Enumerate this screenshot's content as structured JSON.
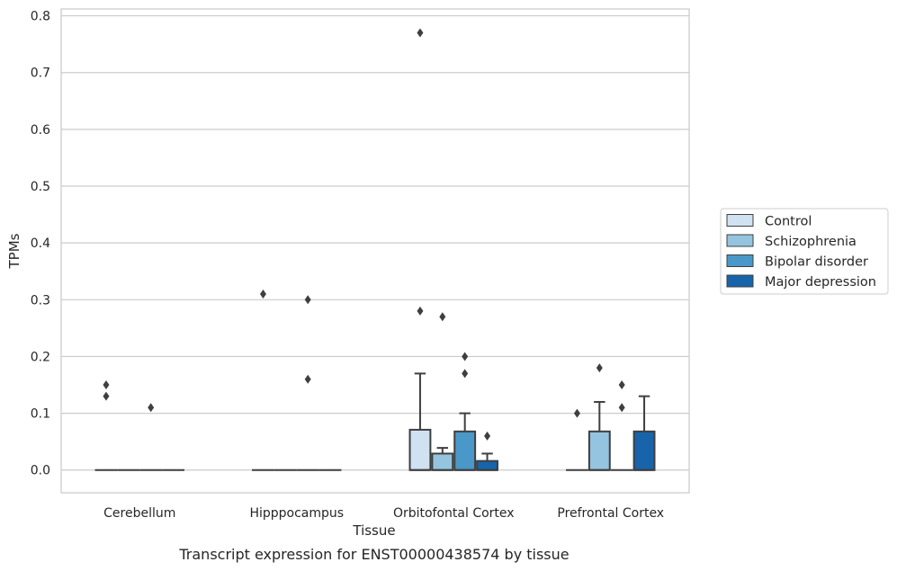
{
  "chart_data": {
    "type": "box",
    "caption": "Transcript expression for ENST00000438574 by tissue",
    "xlabel": "Tissue",
    "ylabel": "TPMs",
    "ylim": [
      -0.04,
      0.812
    ],
    "yticks": [
      0.0,
      0.1,
      0.2,
      0.3,
      0.4,
      0.5,
      0.6,
      0.7,
      0.8
    ],
    "ytick_labels": [
      "0.0",
      "0.1",
      "0.2",
      "0.3",
      "0.4",
      "0.5",
      "0.6",
      "0.7",
      "0.8"
    ],
    "grid": true,
    "legend_position": "right",
    "categories": [
      "Cerebellum",
      "Hipppocampus",
      "Orbitofontal Cortex",
      "Prefrontal Cortex"
    ],
    "series": [
      {
        "name": "Control",
        "color": "#d0e1f2",
        "boxes": [
          {
            "q1": 0,
            "median": 0,
            "q3": 0,
            "whisker_low": 0,
            "whisker_high": 0,
            "outliers": [
              0.13,
              0.15
            ]
          },
          {
            "q1": 0,
            "median": 0,
            "q3": 0,
            "whisker_low": 0,
            "whisker_high": 0,
            "outliers": [
              0.31
            ]
          },
          {
            "q1": 0,
            "median": 0,
            "q3": 0.071,
            "whisker_low": 0,
            "whisker_high": 0.17,
            "outliers": [
              0.28,
              0.77
            ]
          },
          {
            "q1": 0,
            "median": 0,
            "q3": 0,
            "whisker_low": 0,
            "whisker_high": 0,
            "outliers": [
              0.1
            ]
          }
        ]
      },
      {
        "name": "Schizophrenia",
        "color": "#94c4df",
        "boxes": [
          {
            "q1": 0,
            "median": 0,
            "q3": 0,
            "whisker_low": 0,
            "whisker_high": 0,
            "outliers": []
          },
          {
            "q1": 0,
            "median": 0,
            "q3": 0,
            "whisker_low": 0,
            "whisker_high": 0,
            "outliers": []
          },
          {
            "q1": 0,
            "median": 0,
            "q3": 0.029,
            "whisker_low": 0,
            "whisker_high": 0.039,
            "outliers": [
              0.27
            ]
          },
          {
            "q1": 0,
            "median": 0,
            "q3": 0.068,
            "whisker_low": 0,
            "whisker_high": 0.12,
            "outliers": [
              0.18
            ]
          }
        ]
      },
      {
        "name": "Bipolar disorder",
        "color": "#4a98c9",
        "boxes": [
          {
            "q1": 0,
            "median": 0,
            "q3": 0,
            "whisker_low": 0,
            "whisker_high": 0,
            "outliers": [
              0.11
            ]
          },
          {
            "q1": 0,
            "median": 0,
            "q3": 0,
            "whisker_low": 0,
            "whisker_high": 0,
            "outliers": [
              0.16,
              0.3
            ]
          },
          {
            "q1": 0,
            "median": 0,
            "q3": 0.068,
            "whisker_low": 0,
            "whisker_high": 0.1,
            "outliers": [
              0.17,
              0.2
            ]
          },
          {
            "q1": 0,
            "median": 0,
            "q3": 0,
            "whisker_low": 0,
            "whisker_high": 0,
            "outliers": [
              0.11,
              0.15
            ]
          }
        ]
      },
      {
        "name": "Major depression",
        "color": "#1764ab",
        "boxes": [
          {
            "q1": 0,
            "median": 0,
            "q3": 0,
            "whisker_low": 0,
            "whisker_high": 0,
            "outliers": []
          },
          {
            "q1": 0,
            "median": 0,
            "q3": 0,
            "whisker_low": 0,
            "whisker_high": 0,
            "outliers": []
          },
          {
            "q1": 0,
            "median": 0,
            "q3": 0.016,
            "whisker_low": 0,
            "whisker_high": 0.029,
            "outliers": [
              0.06
            ]
          },
          {
            "q1": 0,
            "median": 0,
            "q3": 0.068,
            "whisker_low": 0,
            "whisker_high": 0.13,
            "outliers": []
          }
        ]
      }
    ]
  }
}
